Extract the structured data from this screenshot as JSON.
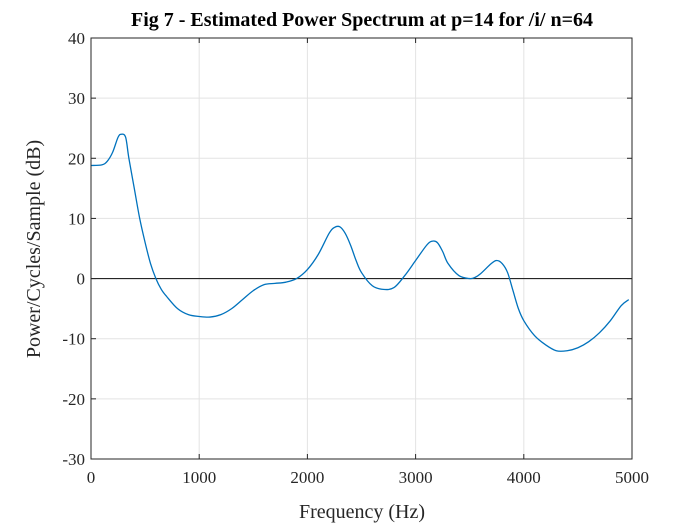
{
  "chart_data": {
    "type": "line",
    "title": "Fig 7 - Estimated Power Spectrum at p=14 for /i/ n=64",
    "xlabel": "Frequency (Hz)",
    "ylabel": "Power/Cycles/Sample (dB)",
    "xlim": [
      0,
      5000
    ],
    "ylim": [
      -30,
      40
    ],
    "xticks": [
      0,
      1000,
      2000,
      3000,
      4000,
      5000
    ],
    "yticks": [
      -30,
      -20,
      -10,
      0,
      10,
      20,
      30,
      40
    ],
    "grid": true,
    "zero_line": true,
    "line_color": "#0072BD",
    "x": [
      0,
      100,
      150,
      200,
      250,
      280,
      320,
      350,
      400,
      450,
      500,
      550,
      600,
      650,
      700,
      800,
      900,
      1000,
      1100,
      1200,
      1300,
      1400,
      1500,
      1600,
      1700,
      1800,
      1900,
      2000,
      2100,
      2200,
      2250,
      2300,
      2350,
      2400,
      2450,
      2500,
      2600,
      2700,
      2800,
      2900,
      3000,
      3100,
      3150,
      3200,
      3250,
      3300,
      3400,
      3500,
      3550,
      3600,
      3700,
      3750,
      3800,
      3850,
      3900,
      3950,
      4000,
      4100,
      4200,
      4300,
      4400,
      4500,
      4600,
      4700,
      4800,
      4900,
      4970
    ],
    "y": [
      18.8,
      18.9,
      19.5,
      21,
      23.5,
      24,
      23.5,
      20,
      15,
      10,
      6,
      2.5,
      0,
      -1.8,
      -3,
      -5,
      -6,
      -6.3,
      -6.4,
      -6,
      -5,
      -3.5,
      -2,
      -1,
      -0.8,
      -0.6,
      0,
      1.5,
      4,
      7.5,
      8.5,
      8.6,
      7.5,
      5.5,
      3,
      1,
      -1.2,
      -1.8,
      -1.5,
      0.5,
      3,
      5.5,
      6.2,
      6,
      4.5,
      2.5,
      0.5,
      0,
      0.2,
      0.8,
      2.5,
      3,
      2.5,
      1,
      -2,
      -5,
      -7,
      -9.5,
      -11,
      -12,
      -12,
      -11.5,
      -10.5,
      -9,
      -7,
      -4.5,
      -3.5
    ]
  }
}
